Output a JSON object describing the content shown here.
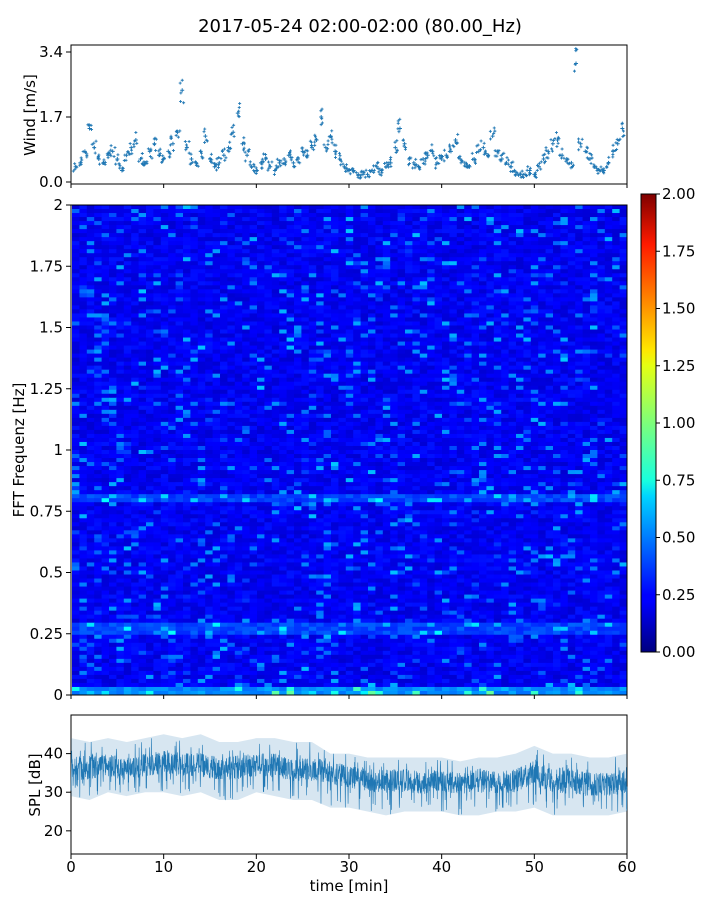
{
  "title": "2017-05-24 02:00-02:00 (80.00_Hz)",
  "chart_data": [
    {
      "type": "scatter",
      "ylabel": "Wind [m/s]",
      "xlim": [
        0,
        60
      ],
      "ylim": [
        0.0,
        3.4
      ],
      "yticks": [
        "0.0",
        "1.7",
        "3.4"
      ],
      "marker": "+",
      "color": "#1f77b4",
      "grid": false,
      "series": [
        {
          "x": [
            0.5,
            1,
            1.5,
            2,
            2.5,
            3,
            3.5,
            4,
            4.5,
            5,
            5.5,
            6,
            6.5,
            7,
            7.5,
            8,
            8.5,
            9,
            9.5,
            10,
            10.5,
            11,
            11.5,
            12,
            12.5,
            13,
            13.5,
            14,
            14.5,
            15,
            15.5,
            16,
            16.5,
            17,
            17.5,
            18,
            18.5,
            19,
            19.5,
            20,
            20.5,
            21,
            21.5,
            22,
            22.5,
            23,
            23.5,
            24,
            24.5,
            25,
            25.5,
            26,
            26.5,
            27,
            27.5,
            28,
            28.5,
            29,
            29.5,
            30,
            30.5,
            31,
            31.5,
            32,
            32.5,
            33,
            33.5,
            34,
            34.5,
            35,
            35.5,
            36,
            36.5,
            37,
            37.5,
            38,
            38.5,
            39,
            39.5,
            40,
            40.5,
            41,
            41.5,
            42,
            42.5,
            43,
            43.5,
            44,
            44.5,
            45,
            45.5,
            46,
            46.5,
            47,
            47.5,
            48,
            48.5,
            49,
            49.5,
            50,
            50.5,
            51,
            51.5,
            52,
            52.5,
            53,
            53.5,
            54,
            54.5,
            55,
            55.5,
            56,
            56.5,
            57,
            57.5,
            58,
            58.5,
            59,
            59.5
          ],
          "y": [
            0.4,
            0.5,
            0.8,
            1.4,
            0.9,
            0.6,
            0.5,
            0.7,
            0.8,
            0.6,
            0.3,
            0.7,
            0.9,
            1.1,
            0.6,
            0.5,
            0.8,
            1.0,
            0.7,
            0.6,
            0.8,
            1.0,
            1.3,
            2.4,
            0.9,
            0.6,
            0.5,
            0.8,
            1.2,
            0.6,
            0.4,
            0.5,
            0.7,
            0.9,
            1.3,
            1.8,
            1.0,
            0.7,
            0.4,
            0.3,
            0.5,
            0.6,
            0.4,
            0.3,
            0.5,
            0.6,
            0.7,
            0.5,
            0.6,
            0.8,
            0.7,
            0.9,
            1.1,
            1.7,
            0.9,
            1.2,
            0.8,
            0.6,
            0.4,
            0.3,
            0.3,
            0.2,
            0.2,
            0.2,
            0.3,
            0.4,
            0.3,
            0.4,
            0.5,
            0.9,
            1.4,
            1.0,
            0.6,
            0.5,
            0.4,
            0.6,
            0.7,
            0.8,
            0.5,
            0.6,
            0.7,
            0.8,
            1.1,
            0.6,
            0.5,
            0.4,
            0.6,
            0.8,
            0.9,
            0.7,
            1.2,
            0.8,
            0.6,
            0.5,
            0.4,
            0.2,
            0.2,
            0.2,
            0.3,
            0.2,
            0.4,
            0.6,
            0.8,
            1.0,
            1.1,
            0.7,
            0.6,
            0.5,
            3.1,
            1.0,
            0.8,
            0.6,
            0.4,
            0.3,
            0.3,
            0.5,
            0.8,
            1.0,
            1.4
          ]
        }
      ]
    },
    {
      "type": "heatmap",
      "ylabel": "FFT Frequenz [Hz]",
      "xlim": [
        0,
        60
      ],
      "ylim": [
        0,
        2
      ],
      "yticks": [
        "0",
        "0.25",
        "0.5",
        "0.75",
        "1",
        "1.25",
        "1.5",
        "1.75",
        "2"
      ],
      "colormap": "jet",
      "colorbar": {
        "range": [
          0.0,
          2.0
        ],
        "ticks": [
          "0.00",
          "0.25",
          "0.50",
          "0.75",
          "1.00",
          "1.25",
          "1.50",
          "1.75",
          "2.00"
        ]
      },
      "notable_bands_hz": [
        0.01,
        0.27,
        0.8
      ]
    },
    {
      "type": "area",
      "ylabel": "SPL [dB]",
      "xlabel": "time [min]",
      "xlim": [
        0,
        60
      ],
      "ylim": [
        14,
        50
      ],
      "xticks": [
        "0",
        "10",
        "20",
        "30",
        "40",
        "50",
        "60"
      ],
      "yticks": [
        "20",
        "30",
        "40"
      ],
      "color": "#1f77b4",
      "series": [
        {
          "x": [
            0,
            2,
            4,
            6,
            8,
            10,
            12,
            14,
            16,
            18,
            20,
            22,
            24,
            26,
            28,
            30,
            32,
            34,
            36,
            38,
            40,
            42,
            44,
            46,
            48,
            50,
            52,
            54,
            56,
            58,
            60
          ],
          "mean": [
            36,
            36.5,
            37,
            36,
            37,
            38,
            37,
            37,
            36,
            36.5,
            37,
            37,
            36,
            36,
            35,
            34,
            33,
            33,
            33,
            32.5,
            33,
            32,
            33,
            32.5,
            33,
            35,
            33,
            33,
            32,
            32,
            33
          ],
          "low": [
            29,
            28,
            30,
            29,
            30,
            30,
            29,
            30,
            28,
            28,
            30,
            29,
            28,
            28,
            26,
            26,
            25,
            24,
            25,
            25,
            25,
            24,
            24,
            25,
            25,
            26,
            24,
            24,
            24,
            24,
            25
          ],
          "high": [
            44,
            43,
            44,
            43,
            44,
            45,
            44,
            45,
            43,
            43,
            44,
            44,
            43,
            43,
            40,
            40,
            39,
            39,
            39,
            39,
            39,
            38,
            39,
            39,
            40,
            42,
            40,
            40,
            39,
            39,
            40
          ]
        }
      ]
    }
  ]
}
